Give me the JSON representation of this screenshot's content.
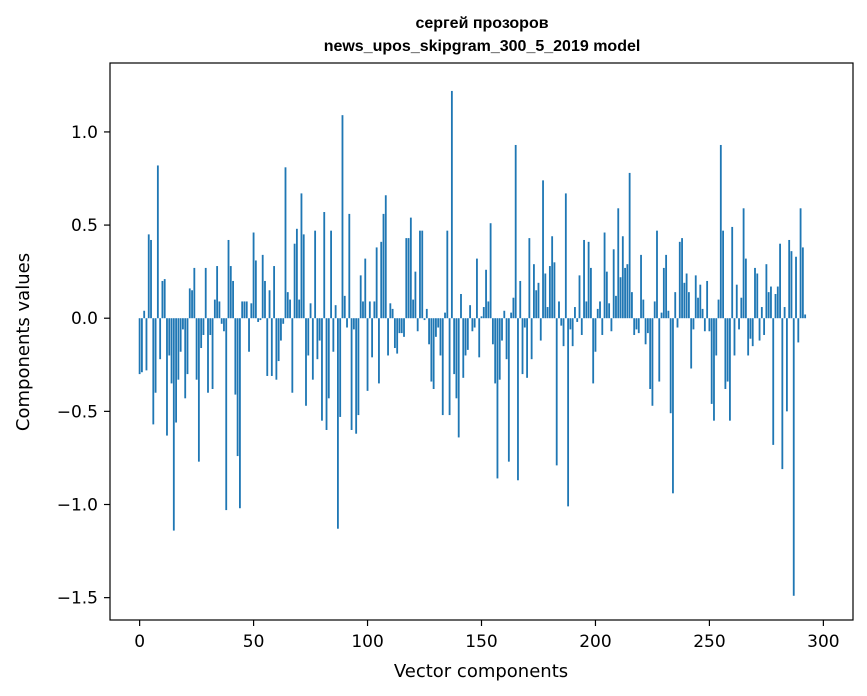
{
  "chart_data": {
    "type": "bar",
    "title_lines": [
      "сергей прозоров",
      "news_upos_skipgram_300_5_2019 model"
    ],
    "xlabel": "Vector components",
    "ylabel": "Components values",
    "xlim": [
      -13,
      313
    ],
    "ylim": [
      -1.62,
      1.37
    ],
    "xticks": [
      0,
      50,
      100,
      150,
      200,
      250,
      300
    ],
    "xtick_labels": [
      "0",
      "50",
      "100",
      "150",
      "200",
      "250",
      "300"
    ],
    "yticks": [
      -1.5,
      -1.0,
      -0.5,
      0.0,
      0.5,
      1.0
    ],
    "ytick_labels": [
      "−1.5",
      "−1.0",
      "−0.5",
      "0.0",
      "0.5",
      "1.0"
    ],
    "bar_color": "#1f77b4",
    "values": [
      -0.3,
      -0.29,
      0.04,
      -0.28,
      0.45,
      0.42,
      -0.57,
      -0.4,
      0.82,
      -0.22,
      0.2,
      0.21,
      -0.63,
      -0.2,
      -0.35,
      -1.14,
      -0.56,
      -0.33,
      -0.18,
      -0.06,
      -0.43,
      -0.3,
      0.16,
      0.15,
      0.27,
      -0.33,
      -0.77,
      -0.16,
      -0.09,
      0.27,
      -0.4,
      -0.09,
      -0.38,
      0.1,
      0.28,
      0.09,
      -0.03,
      -0.07,
      -1.03,
      0.42,
      0.28,
      0.2,
      -0.41,
      -0.74,
      -1.02,
      0.09,
      0.09,
      0.09,
      -0.18,
      0.08,
      0.46,
      0.31,
      -0.02,
      -0.01,
      0.34,
      0.2,
      -0.31,
      0.15,
      -0.31,
      0.28,
      -0.33,
      -0.23,
      -0.12,
      -0.03,
      0.81,
      0.14,
      0.1,
      -0.4,
      0.4,
      0.48,
      0.1,
      0.67,
      0.45,
      -0.47,
      -0.2,
      0.08,
      -0.33,
      0.47,
      -0.22,
      -0.12,
      -0.55,
      0.57,
      -0.6,
      -0.43,
      0.47,
      -0.18,
      0.07,
      -1.13,
      -0.53,
      1.09,
      0.12,
      -0.05,
      0.56,
      -0.6,
      -0.06,
      -0.62,
      -0.52,
      0.23,
      0.09,
      0.32,
      -0.39,
      0.09,
      -0.21,
      0.09,
      0.38,
      -0.35,
      0.41,
      0.56,
      0.66,
      -0.2,
      0.08,
      0.05,
      -0.16,
      -0.19,
      -0.08,
      -0.08,
      -0.1,
      0.43,
      0.43,
      0.54,
      0.1,
      0.25,
      -0.07,
      0.47,
      0.47,
      -0.01,
      0.05,
      -0.14,
      -0.34,
      -0.38,
      -0.1,
      -0.05,
      -0.2,
      -0.52,
      0.03,
      0.47,
      -0.52,
      1.22,
      -0.3,
      -0.43,
      -0.64,
      0.13,
      -0.32,
      -0.2,
      -0.17,
      0.07,
      -0.07,
      -0.05,
      0.32,
      -0.21,
      0.01,
      0.06,
      0.26,
      0.09,
      0.51,
      -0.14,
      -0.35,
      -0.86,
      -0.33,
      -0.12,
      0.04,
      -0.22,
      -0.77,
      0.03,
      0.11,
      0.93,
      -0.87,
      0.2,
      -0.3,
      -0.05,
      -0.32,
      0.43,
      -0.22,
      0.29,
      0.15,
      0.19,
      -0.12,
      0.74,
      0.24,
      0.06,
      0.28,
      0.44,
      0.3,
      -0.79,
      0.09,
      -0.04,
      -0.15,
      0.67,
      -1.01,
      -0.06,
      -0.15,
      0.06,
      -0.02,
      0.23,
      -0.09,
      0.42,
      0.09,
      0.41,
      0.27,
      -0.35,
      -0.18,
      0.05,
      0.09,
      -0.09,
      0.46,
      0.25,
      0.08,
      -0.07,
      0.37,
      0.12,
      0.59,
      0.22,
      0.44,
      0.27,
      0.29,
      0.78,
      0.14,
      -0.09,
      -0.06,
      -0.08,
      0.34,
      0.1,
      -0.14,
      -0.08,
      -0.38,
      -0.47,
      0.09,
      0.47,
      -0.34,
      0.03,
      0.27,
      0.34,
      0.04,
      -0.51,
      -0.94,
      0.14,
      -0.05,
      0.41,
      0.43,
      0.19,
      0.24,
      0.14,
      -0.27,
      -0.06,
      0.23,
      0.11,
      0.18,
      0.05,
      -0.07,
      0.2,
      -0.07,
      -0.46,
      -0.55,
      -0.2,
      0.1,
      0.93,
      0.47,
      -0.38,
      -0.34,
      -0.55,
      0.49,
      -0.2,
      0.18,
      -0.06,
      0.11,
      0.59,
      0.32,
      -0.2,
      -0.11,
      -0.15,
      0.27,
      0.24,
      -0.12,
      0.06,
      -0.09,
      0.29,
      0.14,
      0.17,
      -0.68,
      0.13,
      0.17,
      0.4,
      -0.81,
      0.06,
      -0.5,
      0.42,
      0.36,
      -1.49,
      0.33,
      -0.13,
      0.59,
      0.38,
      0.02
    ]
  }
}
